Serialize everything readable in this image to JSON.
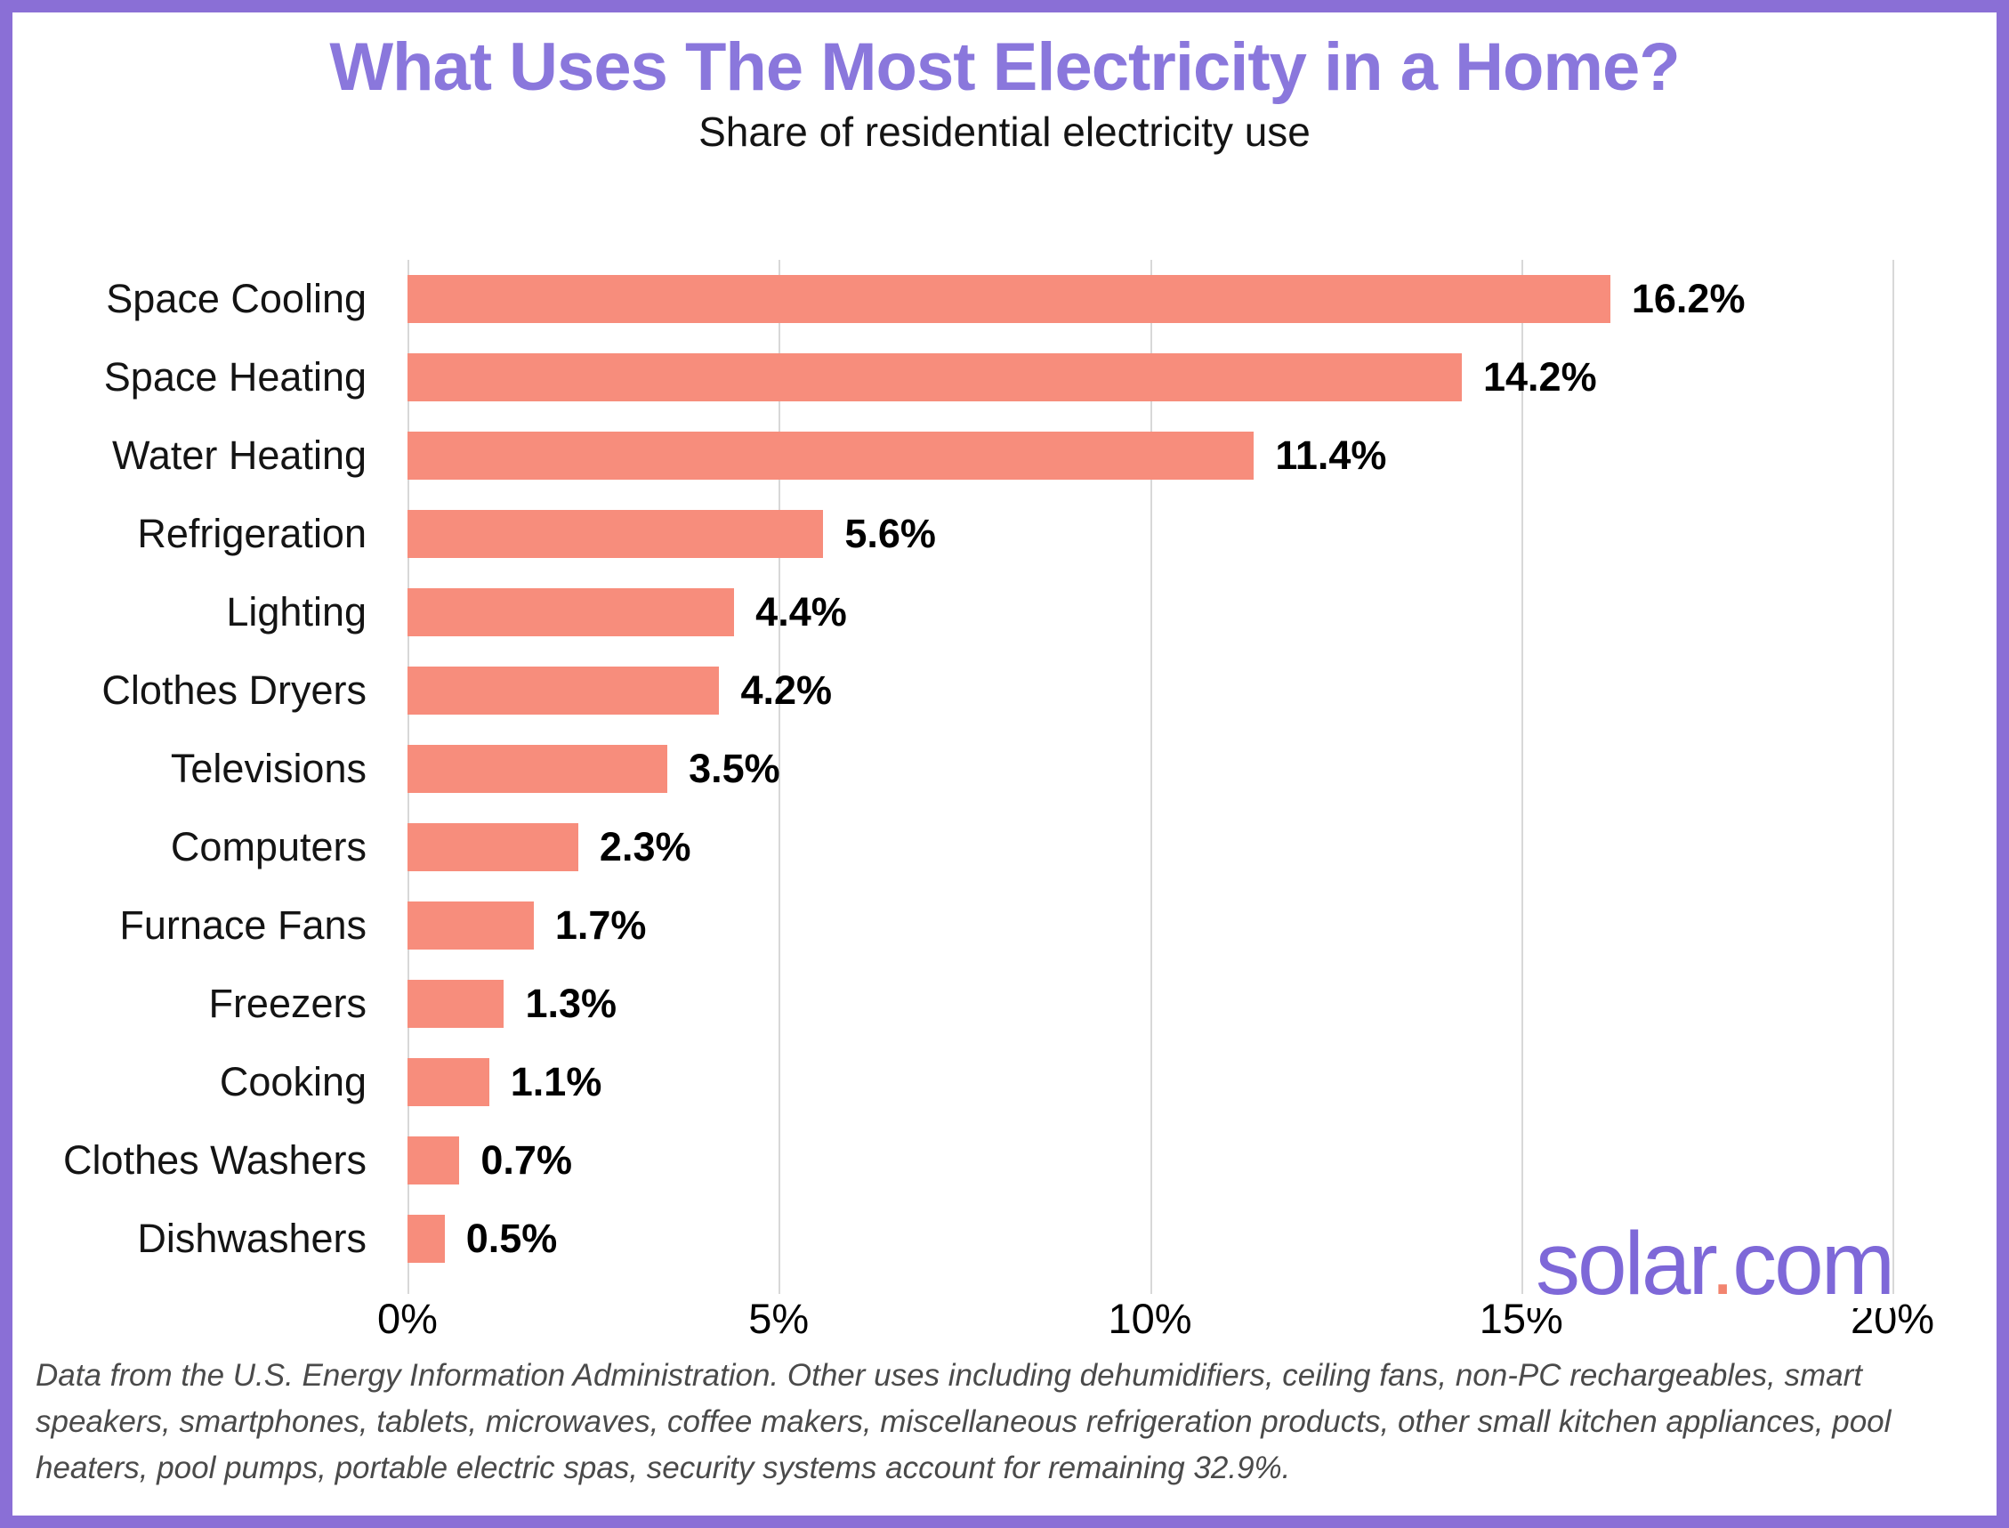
{
  "header": {
    "title": "What Uses The Most Electricity in a Home?",
    "subtitle": "Share of residential electricity use"
  },
  "chart_data": {
    "type": "bar",
    "orientation": "horizontal",
    "title": "What Uses The Most Electricity in a Home?",
    "subtitle": "Share of residential electricity use",
    "categories": [
      "Space Cooling",
      "Space Heating",
      "Water Heating",
      "Refrigeration",
      "Lighting",
      "Clothes Dryers",
      "Televisions",
      "Computers",
      "Furnace Fans",
      "Freezers",
      "Cooking",
      "Clothes Washers",
      "Dishwashers"
    ],
    "values": [
      16.2,
      14.2,
      11.4,
      5.6,
      4.4,
      4.2,
      3.5,
      2.3,
      1.7,
      1.3,
      1.1,
      0.7,
      0.5
    ],
    "value_labels": [
      "16.2%",
      "14.2%",
      "11.4%",
      "5.6%",
      "4.4%",
      "4.2%",
      "3.5%",
      "2.3%",
      "1.7%",
      "1.3%",
      "1.1%",
      "0.7%",
      "0.5%"
    ],
    "xlabel": "",
    "ylabel": "",
    "xlim": [
      0,
      20
    ],
    "x_ticks": [
      0,
      5,
      10,
      15,
      20
    ],
    "x_tick_labels": [
      "0%",
      "5%",
      "10%",
      "15%",
      "20%"
    ],
    "grid": "vertical-only",
    "legend": "none"
  },
  "footer": {
    "note": "Data from the U.S. Energy Information Administration. Other uses including dehumidifiers, ceiling fans, non-PC rechargeables, smart speakers, smartphones, tablets, microwaves, coffee makers, miscellaneous refrigeration products, other small kitchen appliances, pool heaters, pool pumps, portable electric spas, security systems account for remaining 32.9%."
  },
  "logo": {
    "word": "solar",
    "dot": ".",
    "tld": "com"
  },
  "colors": {
    "border_purple": "#8a6fd6",
    "title_purple": "#8a77dc",
    "bar_salmon": "#f78d7c",
    "logo_purple": "#7e68d8",
    "logo_dot_salmon": "#f2846f",
    "gridline_gray": "#d8d8d8",
    "footer_gray": "#4a4a4a"
  }
}
